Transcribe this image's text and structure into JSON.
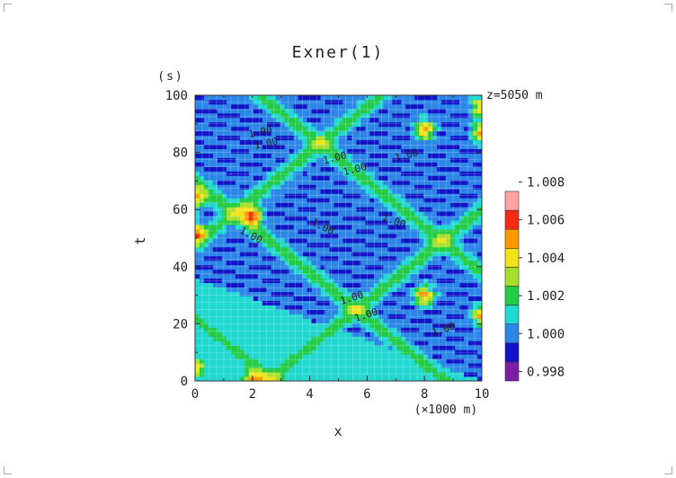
{
  "chart_data": {
    "type": "heatmap",
    "title": "Exner(1)",
    "xlabel": "x",
    "ylabel": "t",
    "x_unit": "(×1000 m)",
    "y_unit": "(s)",
    "annotation": "z=5050 m",
    "xlim": [
      0,
      10
    ],
    "ylim": [
      0,
      100
    ],
    "x_ticks": [
      0,
      2,
      4,
      6,
      8,
      10
    ],
    "y_ticks": [
      0,
      20,
      40,
      60,
      80,
      100
    ],
    "grid": true,
    "legend": "right",
    "colorbar": {
      "levels": [
        0.998,
        1.0,
        1.002,
        1.004,
        1.006,
        1.008
      ],
      "level_labels": [
        "0.998",
        "1.000",
        "1.002",
        "1.004",
        "1.006",
        "1.008"
      ],
      "colors": [
        "#7a1fa2",
        "#1212c8",
        "#2a86e8",
        "#1fd9d0",
        "#22cc44",
        "#a6e02a",
        "#f2e21a",
        "#ff9900",
        "#f52a12",
        "#ffa2a2"
      ]
    },
    "contour_labels": [
      "1.00",
      "1.00",
      "1.00",
      "1.00",
      "1.00",
      "1.00",
      "1.00",
      "1.00",
      "1.00",
      "1.00",
      "1.00"
    ]
  }
}
